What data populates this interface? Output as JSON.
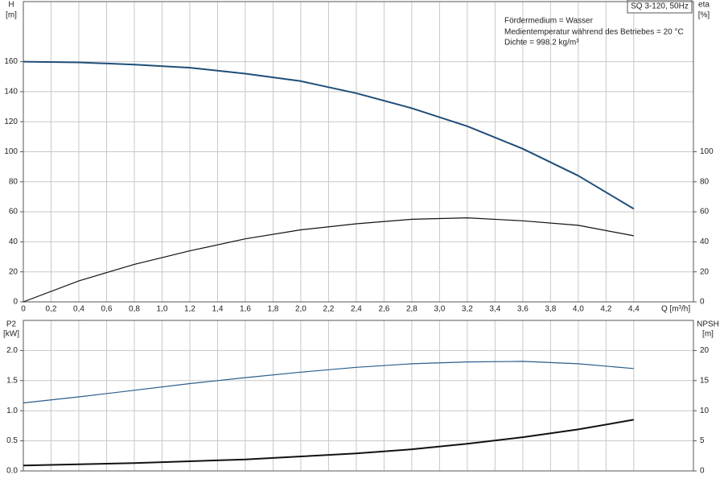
{
  "chart_data": [
    {
      "type": "line",
      "title": "SQ 3-120, 50Hz",
      "annotations": [
        "Fördermedium = Wasser",
        "Medientemperatur während des Betriebes = 20 °C",
        "Dichte = 998.2 kg/m³"
      ],
      "ylabel": "H",
      "yunit": "[m]",
      "y2label": "eta",
      "y2unit": "[%]",
      "xlabel": "Q [m³/h]",
      "x": [
        0,
        0.4,
        0.8,
        1.2,
        1.6,
        2.0,
        2.4,
        2.8,
        3.2,
        3.6,
        4.0,
        4.4
      ],
      "series": [
        {
          "color": "#1f4e79",
          "axis": "y",
          "values": [
            160,
            159.5,
            158,
            156,
            152,
            147,
            139,
            129,
            117,
            102,
            84,
            62
          ]
        },
        {
          "color": "#111111",
          "axis": "y2",
          "values": [
            0,
            14,
            25,
            34,
            42,
            48,
            52,
            55,
            56,
            54,
            51,
            44
          ]
        }
      ],
      "xlim": [
        0,
        4.83
      ],
      "xticks": [
        0,
        {
          "value": 0.2,
          "label": "0,2"
        },
        {
          "value": 0.4,
          "label": "0,4"
        },
        {
          "value": 0.6,
          "label": "0,6"
        },
        {
          "value": 0.8,
          "label": "0,8"
        },
        {
          "value": 1.0,
          "label": "1,0"
        },
        {
          "value": 1.2,
          "label": "1,2"
        },
        {
          "value": 1.4,
          "label": "1,4"
        },
        {
          "value": 1.6,
          "label": "1,6"
        },
        {
          "value": 1.8,
          "label": "1,8"
        },
        {
          "value": 2.0,
          "label": "2,0"
        },
        {
          "value": 2.2,
          "label": "2,2"
        },
        {
          "value": 2.4,
          "label": "2,4"
        },
        {
          "value": 2.6,
          "label": "2,6"
        },
        {
          "value": 2.8,
          "label": "2,8"
        },
        {
          "value": 3.0,
          "label": "3,0"
        },
        {
          "value": 3.2,
          "label": "3,2"
        },
        {
          "value": 3.4,
          "label": "3,4"
        },
        {
          "value": 3.6,
          "label": "3,6"
        },
        {
          "value": 3.8,
          "label": "3,8"
        },
        {
          "value": 4.0,
          "label": "4,0"
        },
        {
          "value": 4.2,
          "label": "4,2"
        },
        {
          "value": 4.4,
          "label": "4,4"
        }
      ],
      "ylim": [
        0,
        200
      ],
      "yticks": [
        0,
        20,
        40,
        60,
        80,
        100,
        120,
        140,
        160
      ],
      "y2lim": [
        0,
        200
      ],
      "y2ticks": [
        0,
        20,
        40,
        60,
        80,
        100
      ],
      "grid": true
    },
    {
      "type": "line",
      "ylabel": "P2",
      "yunit": "[kW]",
      "y2label": "NPSH",
      "y2unit": "[m]",
      "x": [
        0,
        0.4,
        0.8,
        1.2,
        1.6,
        2.0,
        2.4,
        2.8,
        3.2,
        3.6,
        4.0,
        4.4
      ],
      "series": [
        {
          "color": "#2b5d8a",
          "axis": "y",
          "values": [
            1.13,
            1.23,
            1.34,
            1.45,
            1.55,
            1.64,
            1.72,
            1.78,
            1.81,
            1.82,
            1.78,
            1.7
          ]
        },
        {
          "color": "#111111",
          "axis": "y2",
          "values": [
            0.9,
            1.1,
            1.3,
            1.6,
            1.9,
            2.4,
            2.9,
            3.6,
            4.5,
            5.6,
            6.9,
            8.5
          ]
        }
      ],
      "xlim": [
        0,
        4.83
      ],
      "ylim": [
        0,
        2.5
      ],
      "yticks": [
        {
          "value": 0,
          "label": "0.0"
        },
        0.5,
        {
          "value": 1.0,
          "label": "1.0"
        },
        1.5,
        {
          "value": 2.0,
          "label": "2.0"
        }
      ],
      "y2lim": [
        0,
        25
      ],
      "y2ticks": [
        0,
        5,
        10,
        15,
        20
      ],
      "grid": true
    }
  ]
}
